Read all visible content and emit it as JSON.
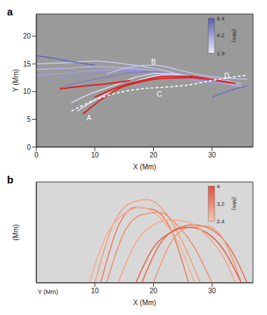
{
  "chart_data": [
    {
      "type": "line",
      "title": "a",
      "x_label": "X (Mm)",
      "y_label": "Y (Mm)",
      "xlim": [
        0,
        37
      ],
      "xticks": [
        0,
        10,
        20,
        30
      ],
      "ylim": [
        0,
        24
      ],
      "yticks": [
        0,
        5,
        10,
        15,
        20
      ],
      "color": "#9a9a9a",
      "colorbar": {
        "label": "(Mm)",
        "range": [
          1.9,
          6.4
        ],
        "ticks": [
          1.9,
          4.2,
          6.4
        ],
        "colors": [
          "#ececfa",
          "#5a5ab0"
        ]
      },
      "annotations": [
        {
          "text": "A",
          "x": 9,
          "y": 5.3
        },
        {
          "text": "B",
          "x": 20,
          "y": 15.4
        },
        {
          "text": "C",
          "x": 21,
          "y": 9.6
        },
        {
          "text": "D",
          "x": 32.5,
          "y": 12.8
        }
      ],
      "series": [
        {
          "color": "#c8c8ec",
          "x": [
            0,
            5,
            10,
            15,
            20,
            25,
            30,
            35
          ],
          "values": [
            15,
            15.2,
            15.5,
            15,
            14.2,
            13,
            12,
            11.5
          ]
        },
        {
          "color": "#b4b4e4",
          "x": [
            0,
            5,
            10,
            15,
            20,
            25,
            30,
            35
          ],
          "values": [
            14,
            14.2,
            14.5,
            14.3,
            13.8,
            12.8,
            11.8,
            11
          ]
        },
        {
          "color": "#a0a0dc",
          "x": [
            0,
            5,
            10,
            15,
            20,
            25,
            30
          ],
          "values": [
            13,
            13.3,
            13.8,
            14,
            13.5,
            12.5,
            11.5
          ]
        },
        {
          "color": "#9090d2",
          "x": [
            2,
            6,
            10,
            15,
            20,
            25,
            30,
            34
          ],
          "values": [
            12,
            12.5,
            13.2,
            13.8,
            13.6,
            12.9,
            12,
            11.4
          ]
        },
        {
          "color": "#8080c8",
          "x": [
            5,
            8,
            12,
            16,
            20,
            24,
            28,
            32
          ],
          "values": [
            11,
            11.8,
            12.6,
            13.4,
            13.6,
            13,
            12.2,
            11.6
          ]
        },
        {
          "color": "#d8d8f4",
          "x": [
            6,
            9,
            13,
            17,
            21,
            25,
            29,
            33
          ],
          "values": [
            8,
            9.5,
            11,
            12.6,
            13.3,
            13,
            12.4,
            11.8
          ]
        },
        {
          "color": "#e4e4f8",
          "x": [
            7,
            10,
            14,
            18,
            22,
            26,
            30,
            34
          ],
          "values": [
            6.5,
            8.5,
            10.5,
            12.2,
            13,
            12.8,
            12.3,
            11.6
          ]
        },
        {
          "color": "#7070c0",
          "x": [
            30,
            32,
            34,
            36
          ],
          "values": [
            9,
            9.8,
            10.5,
            11
          ]
        },
        {
          "color": "#6868b8",
          "x": [
            0,
            3,
            6,
            10
          ],
          "values": [
            16.5,
            16,
            15.4,
            14.8
          ]
        },
        {
          "color": "#c0c0ea",
          "x": [
            12,
            16,
            20,
            24,
            28,
            32,
            36
          ],
          "values": [
            13.2,
            14.4,
            14.8,
            14,
            13,
            12.5,
            12.2
          ]
        },
        {
          "color": "#e02020",
          "x": [
            8,
            11,
            14,
            18,
            22,
            26,
            30,
            33
          ],
          "values": [
            6,
            8.5,
            10.5,
            11.8,
            12.4,
            12.5,
            12.2,
            11.6
          ]
        },
        {
          "color": "#e02020",
          "x": [
            10,
            14,
            18,
            22,
            26,
            30,
            34
          ],
          "values": [
            9,
            10.8,
            12,
            12.8,
            12.8,
            12.2,
            11.5
          ]
        },
        {
          "color": "#e02020",
          "x": [
            4,
            8,
            12,
            16
          ],
          "values": [
            10.5,
            11,
            11.4,
            12
          ]
        },
        {
          "color": "#ffffff",
          "line_style": "dashed",
          "x": [
            6,
            10,
            14,
            18,
            22,
            26,
            30,
            36
          ],
          "values": [
            6.5,
            8.5,
            9.8,
            10.5,
            10.8,
            11.2,
            12,
            13
          ]
        }
      ]
    },
    {
      "type": "line",
      "title": "b",
      "x_label": "X (Mm)",
      "y_label": "Y (Mm)",
      "z_label": "(Mm)",
      "xlim": [
        0,
        37
      ],
      "xticks": [
        10,
        20,
        30
      ],
      "ylim": [
        0,
        8
      ],
      "yticks": [],
      "tick_labels": "x",
      "color": "#d8d8d8",
      "colorbar": {
        "label": "(Mm)",
        "range": [
          2.4,
          4.0
        ],
        "ticks": [
          2.4,
          3.2,
          4.0
        ],
        "colors": [
          "#f8c8b0",
          "#e0503a"
        ]
      },
      "series": [
        {
          "color": "#f0a080",
          "x": [
            10,
            13,
            16,
            19,
            22,
            25,
            28
          ],
          "values": [
            0,
            4.5,
            6.3,
            6.6,
            5.6,
            3.2,
            0
          ]
        },
        {
          "color": "#e88060",
          "x": [
            11,
            14,
            17,
            20,
            23,
            26
          ],
          "values": [
            0,
            4.5,
            6,
            5.8,
            4.2,
            0
          ]
        },
        {
          "color": "#f4b090",
          "x": [
            9,
            12,
            15,
            18,
            21,
            24,
            27
          ],
          "values": [
            0,
            3.8,
            5.5,
            6,
            5.2,
            3.4,
            0
          ]
        },
        {
          "color": "#ec9070",
          "x": [
            12,
            15,
            18,
            21,
            24,
            27,
            30
          ],
          "values": [
            0,
            4,
            5.4,
            5.6,
            4.6,
            2.8,
            0
          ]
        },
        {
          "color": "#e87050",
          "x": [
            18,
            21,
            24,
            27,
            30,
            33,
            36
          ],
          "values": [
            0,
            3,
            4.3,
            4.6,
            4.2,
            2.8,
            0
          ]
        },
        {
          "color": "#f09878",
          "x": [
            20,
            23,
            26,
            29,
            32,
            35
          ],
          "values": [
            0,
            3.2,
            4.4,
            4.5,
            3.4,
            0
          ]
        },
        {
          "color": "#e46448",
          "x": [
            17,
            20,
            23,
            26,
            29,
            32,
            35
          ],
          "values": [
            0,
            2.8,
            4,
            4.4,
            4,
            2.6,
            0
          ]
        },
        {
          "color": "#f4a888",
          "x": [
            14,
            17,
            20,
            23,
            26,
            29,
            32,
            34
          ],
          "values": [
            0,
            3.2,
            4.6,
            5,
            4.8,
            3.8,
            2,
            0
          ]
        }
      ]
    }
  ]
}
